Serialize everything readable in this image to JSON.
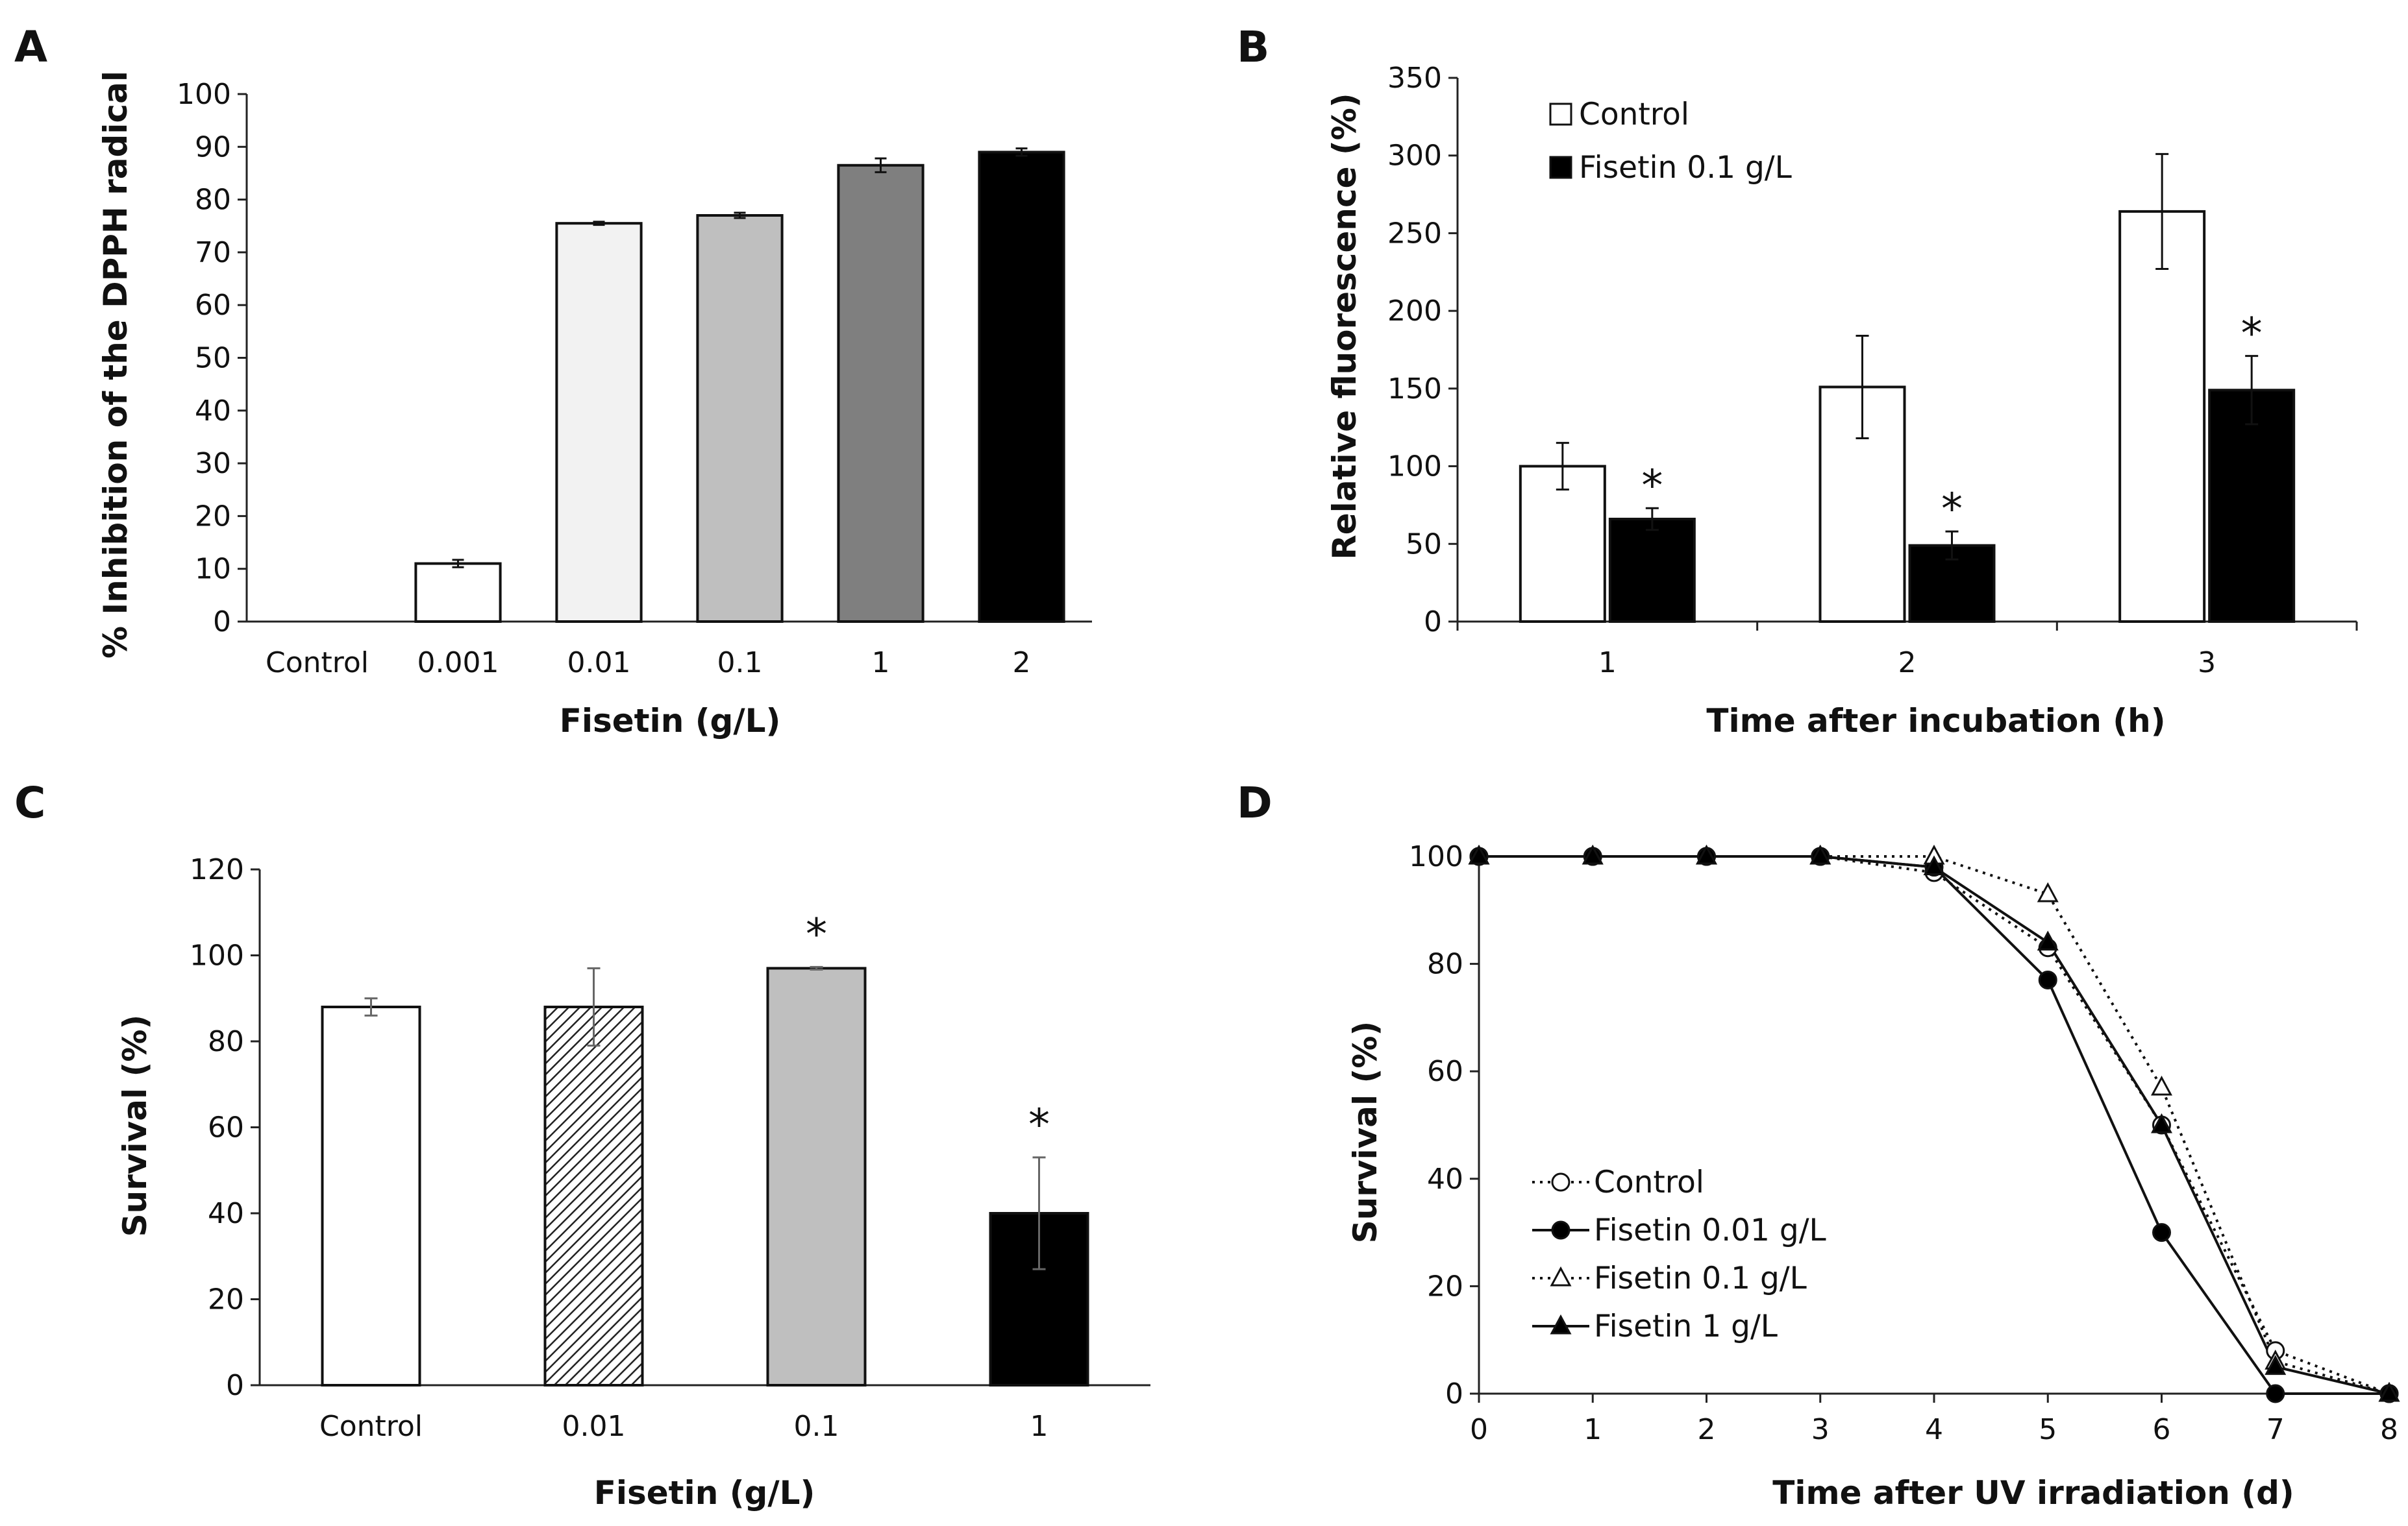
{
  "chart_data": [
    {
      "panel": "A",
      "type": "bar",
      "xlabel": "Fisetin (g/L)",
      "ylabel": "% Inhibition of the DPPH radical",
      "ylim": [
        0,
        100
      ],
      "yticks": [
        "0",
        "10",
        "20",
        "30",
        "40",
        "50",
        "60",
        "70",
        "80",
        "90",
        "100"
      ],
      "categories": [
        "Control",
        "0.001",
        "0.01",
        "0.1",
        "1",
        "2"
      ],
      "values": [
        0,
        11,
        75.5,
        77,
        86.5,
        89
      ],
      "errors": [
        0,
        0.7,
        0.3,
        0.5,
        1.3,
        0.7
      ],
      "bar_colors": [
        "#ffffff",
        "#ffffff",
        "#f2f2f2",
        "#bfbfbf",
        "#7f7f7f",
        "#000000"
      ]
    },
    {
      "panel": "B",
      "type": "bar",
      "xlabel": "Time after incubation (h)",
      "ylabel": "Relative fluorescence (%)",
      "ylim": [
        0,
        350
      ],
      "yticks": [
        "0",
        "50",
        "100",
        "150",
        "200",
        "250",
        "300",
        "350"
      ],
      "categories": [
        "1",
        "2",
        "3"
      ],
      "series": [
        {
          "name": "Control",
          "color": "#ffffff",
          "values": [
            100,
            151,
            264
          ],
          "errors": [
            15,
            33,
            37
          ],
          "stars": [
            "",
            "",
            ""
          ]
        },
        {
          "name": "Fisetin 0.1 g/L",
          "color": "#000000",
          "values": [
            66,
            49,
            149
          ],
          "errors": [
            7,
            9,
            22
          ],
          "stars": [
            "*",
            "*",
            "*"
          ]
        }
      ],
      "legend": "top-left"
    },
    {
      "panel": "C",
      "type": "bar",
      "xlabel": "Fisetin (g/L)",
      "ylabel": "Survival (%)",
      "ylim": [
        0,
        120
      ],
      "yticks": [
        "0",
        "20",
        "40",
        "60",
        "80",
        "100",
        "120"
      ],
      "categories": [
        "Control",
        "0.01",
        "0.1",
        "1"
      ],
      "values": [
        88,
        88,
        97,
        40
      ],
      "errors": [
        2,
        9,
        0.3,
        13
      ],
      "stars": [
        "",
        "",
        "*",
        "*"
      ],
      "bar_fills": [
        "white",
        "hatched",
        "gray",
        "black"
      ]
    },
    {
      "panel": "D",
      "type": "line",
      "xlabel": "Time after UV irradiation (d)",
      "ylabel": "Survival (%)",
      "xlim": [
        0,
        8
      ],
      "ylim": [
        0,
        100
      ],
      "xticks": [
        "0",
        "1",
        "2",
        "3",
        "4",
        "5",
        "6",
        "7",
        "8"
      ],
      "yticks": [
        "0",
        "20",
        "40",
        "60",
        "80",
        "100"
      ],
      "x": [
        0,
        1,
        2,
        3,
        4,
        5,
        6,
        7,
        8
      ],
      "series": [
        {
          "name": "Control",
          "marker": "open-circle",
          "line": "dotted",
          "values": [
            100,
            100,
            100,
            100,
            97,
            83,
            50,
            8,
            0
          ]
        },
        {
          "name": "Fisetin 0.01 g/L",
          "marker": "filled-circle",
          "line": "solid",
          "values": [
            100,
            100,
            100,
            100,
            98,
            77,
            30,
            0,
            0
          ]
        },
        {
          "name": "Fisetin 0.1 g/L",
          "marker": "open-triangle",
          "line": "dotted",
          "values": [
            100,
            100,
            100,
            100,
            100,
            93,
            57,
            6,
            0
          ]
        },
        {
          "name": "Fisetin 1 g/L",
          "marker": "filled-triangle",
          "line": "solid",
          "values": [
            100,
            100,
            100,
            100,
            98,
            84,
            50,
            5,
            0
          ]
        }
      ],
      "legend": "bottom-left"
    }
  ]
}
